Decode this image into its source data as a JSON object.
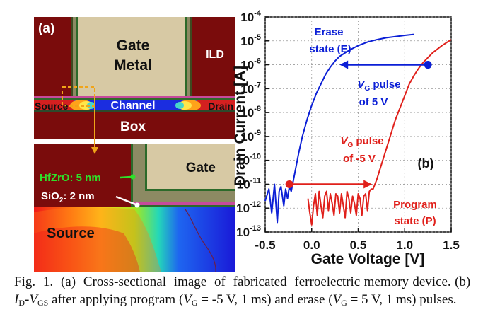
{
  "panel_a": {
    "label": "(a)",
    "gate_metal_line1": "Gate",
    "gate_metal_line2": "Metal",
    "ild": "ILD",
    "source": "Source",
    "channel": "Channel",
    "drain": "Drain",
    "box": "Box",
    "gate": "Gate",
    "hfzro": "HfZrO: 5 nm",
    "sio2_prefix": "SiO",
    "sio2_sub": "2",
    "sio2_suffix": ": 2 nm",
    "source_zoom": "Source"
  },
  "panel_b": {
    "label": "(b)",
    "erase_line1": "Erase",
    "erase_line2": "state (E)",
    "vg_pos_line1_sub": "G",
    "vg_pos_line1_tail": " pulse",
    "vg_pos_line2": "of 5 V",
    "vg_neg_line1_sub": "G",
    "vg_neg_line1_tail": " pulse",
    "vg_neg_line2": "of -5 V",
    "program_line1": "Program",
    "program_line2": "state (P)",
    "v_letter": "V"
  },
  "chart_data": {
    "type": "line",
    "xlabel": "Gate Voltage [V]",
    "ylabel": "Drain Current [A]",
    "xlim": [
      -0.5,
      1.5
    ],
    "ylim_log10": [
      -13,
      -4
    ],
    "yscale": "log",
    "grid": true,
    "x_ticks": [
      "-0.5",
      "0.0",
      "0.5",
      "1.0",
      "1.5"
    ],
    "y_tick_exponents": [
      "-4",
      "-5",
      "-6",
      "-7",
      "-8",
      "-9",
      "-10",
      "-11",
      "-12",
      "-13"
    ],
    "series": [
      {
        "name": "Erase state (E)",
        "color": "#0b1fd6",
        "x": [
          -0.5,
          -0.46,
          -0.43,
          -0.4,
          -0.37,
          -0.35,
          -0.33,
          -0.3,
          -0.28,
          -0.26,
          -0.24,
          -0.22,
          -0.2,
          -0.17,
          -0.14,
          -0.1,
          -0.05,
          0.0,
          0.05,
          0.1,
          0.15,
          0.2,
          0.25,
          0.3,
          0.4,
          0.5,
          0.6,
          0.7,
          0.8,
          0.9,
          1.0,
          1.1
        ],
        "log10_y": [
          -11.7,
          -11.2,
          -12.2,
          -11.0,
          -12.6,
          -11.3,
          -11.1,
          -11.9,
          -11.2,
          -11.6,
          -11.1,
          -11.3,
          -10.9,
          -10.3,
          -9.7,
          -9.0,
          -8.3,
          -7.7,
          -7.2,
          -6.8,
          -6.4,
          -6.1,
          -5.85,
          -5.65,
          -5.4,
          -5.2,
          -5.05,
          -4.95,
          -4.87,
          -4.82,
          -4.77,
          -4.73
        ]
      },
      {
        "name": "Program state (P)",
        "color": "#e0201b",
        "x": [
          -0.04,
          -0.02,
          0.0,
          0.02,
          0.04,
          0.06,
          0.08,
          0.1,
          0.12,
          0.14,
          0.16,
          0.18,
          0.2,
          0.22,
          0.24,
          0.26,
          0.28,
          0.3,
          0.32,
          0.34,
          0.36,
          0.38,
          0.4,
          0.42,
          0.44,
          0.46,
          0.48,
          0.5,
          0.52,
          0.54,
          0.56,
          0.58,
          0.6,
          0.62,
          0.64,
          0.66,
          0.7,
          0.74,
          0.78,
          0.82,
          0.86,
          0.9,
          0.95,
          1.0,
          1.05,
          1.1,
          1.15,
          1.2,
          1.3,
          1.4,
          1.5
        ],
        "log10_y": [
          -11.6,
          -12.2,
          -12.7,
          -11.9,
          -11.4,
          -12.3,
          -11.3,
          -11.9,
          -12.4,
          -11.5,
          -11.3,
          -12.1,
          -11.4,
          -11.8,
          -12.3,
          -11.4,
          -11.5,
          -12.2,
          -11.4,
          -11.9,
          -12.4,
          -11.3,
          -11.6,
          -12.2,
          -11.5,
          -11.8,
          -12.3,
          -11.4,
          -11.6,
          -12.3,
          -11.5,
          -11.4,
          -12.1,
          -11.3,
          -11.2,
          -11.2,
          -10.8,
          -10.3,
          -9.8,
          -9.3,
          -8.8,
          -8.3,
          -7.8,
          -7.3,
          -6.8,
          -6.45,
          -6.15,
          -5.9,
          -5.5,
          -5.2,
          -4.95
        ]
      }
    ],
    "markers": [
      {
        "color": "#0b1fd6",
        "x": 1.25,
        "log10_y": -6.0
      },
      {
        "color": "#e0201b",
        "x": -0.24,
        "log10_y": -11.0
      }
    ],
    "arrows": [
      {
        "color": "#0b1fd6",
        "from_x": 1.25,
        "to_x": 0.3,
        "log10_y": -6.0
      },
      {
        "color": "#e0201b",
        "from_x": -0.24,
        "to_x": 0.65,
        "log10_y": -11.0
      }
    ]
  },
  "caption": {
    "part1": "Fig.  1.  (a)  Cross-sectional  image  of  fabricated  ferroelectric memory device. (b)  ",
    "id_letter": "I",
    "id_sub": "D",
    "dash": "-",
    "vg_letter": "V",
    "vgs_sub": "GS",
    "part2": " after applying program (",
    "v1_letter": "V",
    "v1_sub": "G",
    "part3": " = -5 V, 1 ms) and erase (",
    "v2_letter": "V",
    "v2_sub": "G",
    "part4": " = 5 V, 1 ms) pulses."
  }
}
